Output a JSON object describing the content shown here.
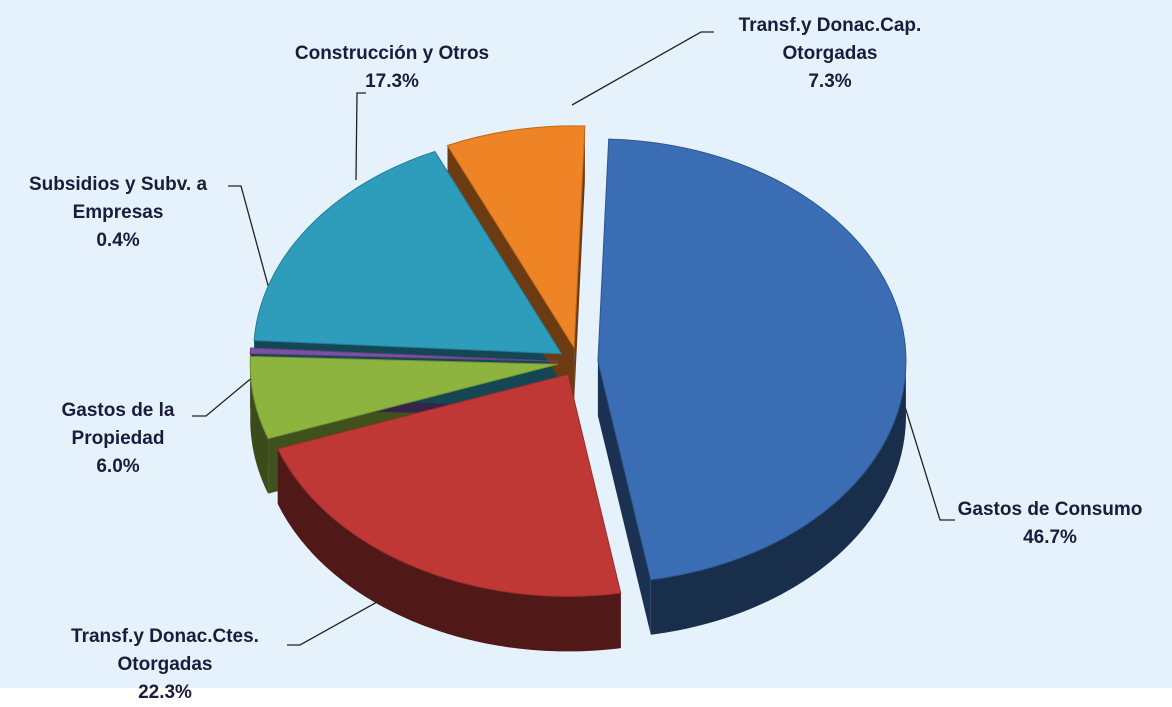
{
  "chart_data": {
    "type": "pie",
    "categories": [
      "Gastos de Consumo",
      "Transf.y Donac.Ctes. Otorgadas",
      "Gastos de la Propiedad",
      "Subsidios y Subv. a Empresas",
      "Construcción y Otros",
      "Transf.y Donac.Cap. Otorgadas"
    ],
    "values": [
      46.7,
      22.3,
      6.0,
      0.4,
      17.3,
      7.3
    ],
    "value_labels": [
      "46.7%",
      "22.3%",
      "6.0%",
      "0.4%",
      "17.3%",
      "7.3%"
    ],
    "colors": [
      "#3a6db3",
      "#bf3836",
      "#8cb43e",
      "#7b52a3",
      "#2e9cbb",
      "#ef8426"
    ]
  }
}
